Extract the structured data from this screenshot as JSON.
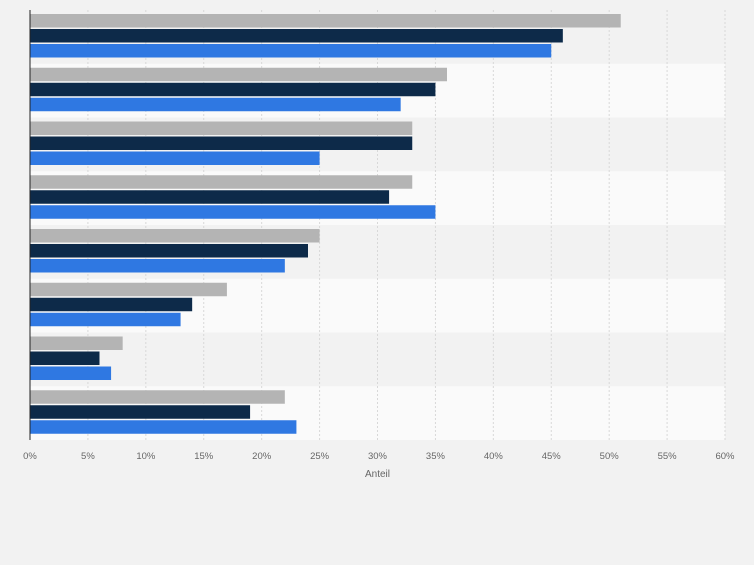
{
  "chart_data": {
    "type": "bar",
    "orientation": "horizontal",
    "categories": [
      "",
      "",
      "",
      "",
      "",
      "",
      "",
      ""
    ],
    "series": [
      {
        "color": "#b4b4b4",
        "values": [
          51,
          36,
          33,
          33,
          25,
          17,
          8,
          22
        ]
      },
      {
        "color": "#0d2a49",
        "values": [
          46,
          35,
          33,
          31,
          24,
          14,
          6,
          19
        ]
      },
      {
        "color": "#2f78e2",
        "values": [
          45,
          32,
          25,
          35,
          22,
          13,
          7,
          23
        ]
      }
    ],
    "xlim": [
      0,
      60
    ],
    "ticks": [
      0,
      5,
      10,
      15,
      20,
      25,
      30,
      35,
      40,
      45,
      50,
      55,
      60
    ],
    "tick_suffix": "%",
    "xlabel": "Anteil",
    "ylabel": "",
    "title": "",
    "grid": true,
    "legend": "none"
  }
}
